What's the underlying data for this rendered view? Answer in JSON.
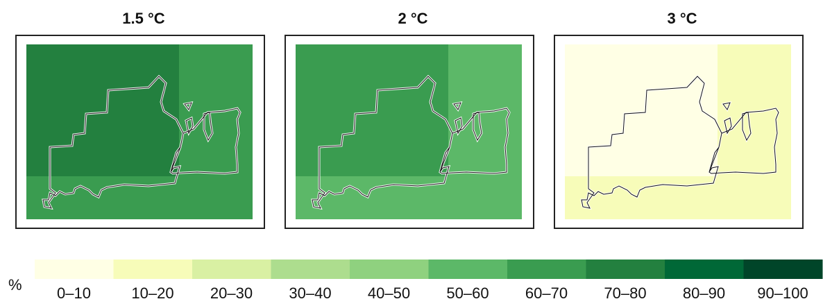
{
  "panels": [
    {
      "title": "1.5 °C",
      "base_class": 6,
      "region_class": 7
    },
    {
      "title": "2 °C",
      "base_class": 5,
      "region_class": 6
    },
    {
      "title": "3 °C",
      "base_class": 1,
      "region_class": 0
    }
  ],
  "legend": {
    "unit": "%",
    "classes": [
      {
        "label": "0–10",
        "color": "#ffffe5"
      },
      {
        "label": "10–20",
        "color": "#f7fcb9"
      },
      {
        "label": "20–30",
        "color": "#d9f0a3"
      },
      {
        "label": "30–40",
        "color": "#addd8e"
      },
      {
        "label": "40–50",
        "color": "#8fd17f"
      },
      {
        "label": "50–60",
        "color": "#5cb868"
      },
      {
        "label": "60–70",
        "color": "#3a9c50"
      },
      {
        "label": "70–80",
        "color": "#23803f"
      },
      {
        "label": "80–90",
        "color": "#006837"
      },
      {
        "label": "90–100",
        "color": "#004529"
      }
    ]
  }
}
